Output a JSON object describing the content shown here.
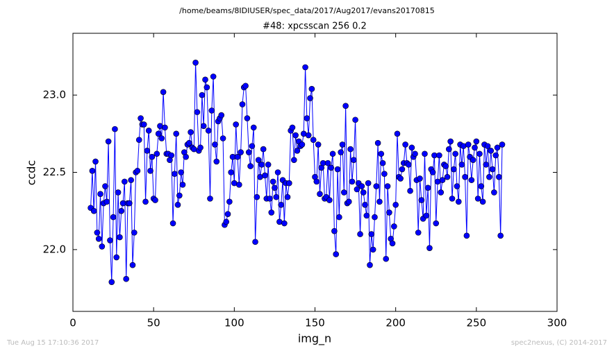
{
  "chart_data": {
    "type": "line",
    "suptitle": "/home/beams/8IDIUSER/spec_data/2017/Aug2017/evans20170815",
    "title": "#48: xpcsscan 256 0.2",
    "xlabel": "img_n",
    "ylabel": "ccdc",
    "footer_left": "Tue Aug 15 17:10:36 2017",
    "footer_right": "spec2nexus, (C) 2014-2017",
    "xlim": [
      0,
      300
    ],
    "xticks": [
      0,
      50,
      100,
      150,
      200,
      250,
      300
    ],
    "ylim": [
      21.6,
      23.4
    ],
    "yticks": [
      {
        "value": 22,
        "label": "22.0"
      },
      {
        "value": 22.5,
        "label": "22.5"
      },
      {
        "value": 23,
        "label": "23.0"
      }
    ],
    "grid": false,
    "x": [
      11,
      12,
      13,
      14,
      15,
      16,
      17,
      18,
      19,
      20,
      21,
      22,
      23,
      24,
      25,
      26,
      27,
      28,
      29,
      30,
      31,
      32,
      33,
      34,
      35,
      36,
      37,
      38,
      39,
      40,
      41,
      42,
      43,
      44,
      45,
      46,
      47,
      48,
      49,
      50,
      51,
      52,
      53,
      54,
      55,
      56,
      57,
      58,
      59,
      60,
      61,
      62,
      63,
      64,
      65,
      66,
      67,
      68,
      69,
      70,
      71,
      72,
      73,
      74,
      75,
      76,
      77,
      78,
      79,
      80,
      81,
      82,
      83,
      84,
      85,
      86,
      87,
      88,
      89,
      90,
      91,
      92,
      93,
      94,
      95,
      96,
      97,
      98,
      99,
      100,
      101,
      102,
      103,
      104,
      105,
      106,
      107,
      108,
      109,
      110,
      111,
      112,
      113,
      114,
      115,
      116,
      117,
      118,
      119,
      120,
      121,
      122,
      123,
      124,
      125,
      126,
      127,
      128,
      129,
      130,
      131,
      132,
      133,
      134,
      135,
      136,
      137,
      138,
      139,
      140,
      141,
      142,
      143,
      144,
      145,
      146,
      147,
      148,
      149,
      150,
      151,
      152,
      153,
      154,
      155,
      156,
      157,
      158,
      159,
      160,
      161,
      162,
      163,
      164,
      165,
      166,
      167,
      168,
      169,
      170,
      171,
      172,
      173,
      174,
      175,
      176,
      177,
      178,
      179,
      180,
      181,
      182,
      183,
      184,
      185,
      186,
      187,
      188,
      189,
      190,
      191,
      192,
      193,
      194,
      195,
      196,
      197,
      198,
      199,
      200,
      201,
      202,
      203,
      204,
      205,
      206,
      207,
      208,
      209,
      210,
      211,
      212,
      213,
      214,
      215,
      216,
      217,
      218,
      219,
      220,
      221,
      222,
      223,
      224,
      225,
      226,
      227,
      228,
      229,
      230,
      231,
      232,
      233,
      234,
      235,
      236,
      237,
      238,
      239,
      240,
      241,
      242,
      243,
      244,
      245,
      246,
      247,
      248,
      249,
      250,
      251,
      252,
      253,
      254,
      255,
      256,
      257,
      258,
      259,
      260,
      261,
      262,
      263,
      264,
      265,
      266
    ],
    "series": [
      {
        "color": "#0000ff",
        "values": [
          22.27,
          22.51,
          22.25,
          22.57,
          22.11,
          22.07,
          22.36,
          22.02,
          22.3,
          22.41,
          22.31,
          22.7,
          22.06,
          21.79,
          22.21,
          22.78,
          21.95,
          22.37,
          22.08,
          22.25,
          22.3,
          22.44,
          21.81,
          22.3,
          22.3,
          22.45,
          21.9,
          22.11,
          22.5,
          22.51,
          22.71,
          22.85,
          22.81,
          22.81,
          22.31,
          22.64,
          22.77,
          22.51,
          22.6,
          22.33,
          22.32,
          22.62,
          22.75,
          22.8,
          22.72,
          23.02,
          22.79,
          22.62,
          22.62,
          22.58,
          22.61,
          22.17,
          22.49,
          22.75,
          22.29,
          22.35,
          22.5,
          22.42,
          22.63,
          22.6,
          22.68,
          22.69,
          22.76,
          22.66,
          22.65,
          23.21,
          22.89,
          22.64,
          22.66,
          23.0,
          22.8,
          23.1,
          23.05,
          22.77,
          22.33,
          22.9,
          23.12,
          22.68,
          22.57,
          22.83,
          22.85,
          22.87,
          22.72,
          22.16,
          22.18,
          22.23,
          22.31,
          22.5,
          22.6,
          22.43,
          22.81,
          22.6,
          22.42,
          22.63,
          22.94,
          23.05,
          23.06,
          22.85,
          22.63,
          22.54,
          22.67,
          22.79,
          22.05,
          22.34,
          22.58,
          22.47,
          22.55,
          22.65,
          22.48,
          22.33,
          22.55,
          22.33,
          22.24,
          22.44,
          22.4,
          22.34,
          22.5,
          22.18,
          22.29,
          22.45,
          22.17,
          22.43,
          22.34,
          22.43,
          22.77,
          22.79,
          22.58,
          22.74,
          22.64,
          22.7,
          22.67,
          22.68,
          22.75,
          23.18,
          22.85,
          22.74,
          22.98,
          23.04,
          22.71,
          22.47,
          22.44,
          22.68,
          22.36,
          22.53,
          22.56,
          22.33,
          22.34,
          22.56,
          22.32,
          22.53,
          22.62,
          22.12,
          21.97,
          22.52,
          22.21,
          22.63,
          22.68,
          22.37,
          22.93,
          22.3,
          22.31,
          22.65,
          22.44,
          22.58,
          22.84,
          22.39,
          22.43,
          22.1,
          22.41,
          22.37,
          22.29,
          22.22,
          22.43,
          21.9,
          22.1,
          22.0,
          22.21,
          22.41,
          22.69,
          22.31,
          22.62,
          22.56,
          22.49,
          21.94,
          22.41,
          22.24,
          22.07,
          22.04,
          22.15,
          22.29,
          22.75,
          22.47,
          22.46,
          22.52,
          22.56,
          22.68,
          22.56,
          22.55,
          22.38,
          22.66,
          22.6,
          22.62,
          22.45,
          22.11,
          22.46,
          22.32,
          22.2,
          22.62,
          22.22,
          22.4,
          22.01,
          22.52,
          22.5,
          22.61,
          22.17,
          22.44,
          22.61,
          22.37,
          22.45,
          22.55,
          22.54,
          22.47,
          22.65,
          22.7,
          22.33,
          22.52,
          22.62,
          22.41,
          22.31,
          22.68,
          22.55,
          22.67,
          22.47,
          22.09,
          22.68,
          22.6,
          22.45,
          22.58,
          22.66,
          22.7,
          22.33,
          22.62,
          22.41,
          22.31,
          22.68,
          22.55,
          22.67,
          22.47,
          22.64,
          22.52,
          22.37,
          22.61,
          22.66,
          22.47,
          22.09,
          22.68
        ]
      }
    ]
  }
}
